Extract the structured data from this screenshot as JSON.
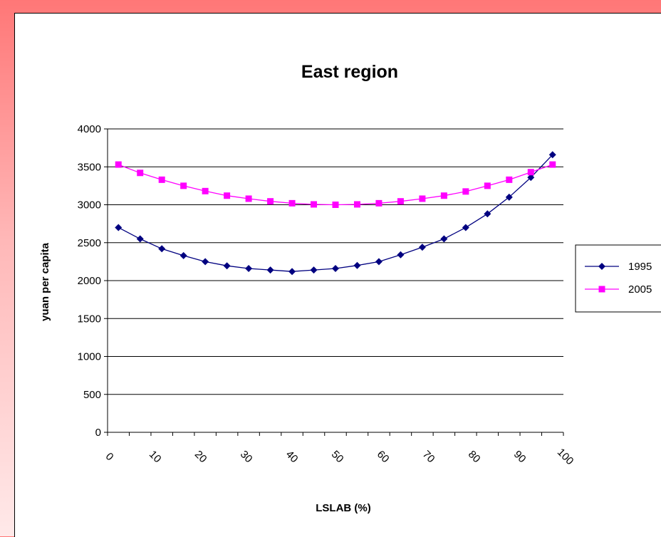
{
  "chart_data": {
    "type": "line",
    "title": "East region",
    "xlabel": "LSLAB (%)",
    "ylabel": "yuan per capita",
    "ylim": [
      0,
      4000
    ],
    "yticks": [
      "0",
      "500",
      "1000",
      "1500",
      "2000",
      "2500",
      "3000",
      "3500",
      "4000"
    ],
    "xticks": [
      "0",
      "10",
      "20",
      "30",
      "40",
      "50",
      "60",
      "70",
      "80",
      "90",
      "100"
    ],
    "x": [
      0,
      5,
      10,
      15,
      20,
      25,
      30,
      35,
      40,
      45,
      50,
      55,
      60,
      65,
      70,
      75,
      80,
      85,
      90,
      95,
      100
    ],
    "grid": true,
    "legend_position": "right",
    "series": [
      {
        "name": "1995",
        "color": "#000080",
        "marker": "diamond",
        "values": [
          2700,
          2550,
          2420,
          2330,
          2250,
          2195,
          2160,
          2140,
          2120,
          2140,
          2160,
          2200,
          2250,
          2340,
          2440,
          2550,
          2700,
          2880,
          3100,
          3360,
          3660
        ]
      },
      {
        "name": "2005",
        "color": "#ff00ff",
        "marker": "square",
        "values": [
          3530,
          3420,
          3330,
          3250,
          3180,
          3120,
          3080,
          3045,
          3020,
          3005,
          3000,
          3005,
          3020,
          3045,
          3080,
          3120,
          3175,
          3250,
          3330,
          3430,
          3530
        ]
      }
    ]
  }
}
